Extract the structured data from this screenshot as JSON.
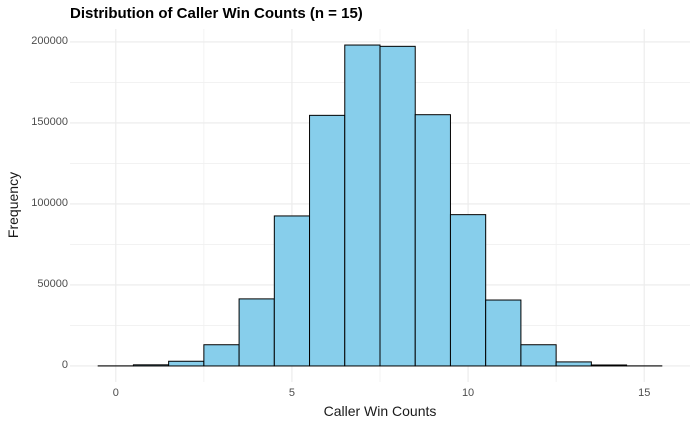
{
  "chart_data": {
    "type": "bar",
    "subtype": "histogram",
    "title": "Distribution of Caller Win Counts (n = 15)",
    "xlabel": "Caller Win Counts",
    "ylabel": "Frequency",
    "categories": [
      0,
      1,
      2,
      3,
      4,
      5,
      6,
      7,
      8,
      9,
      10,
      11,
      12,
      13,
      14,
      15
    ],
    "values": [
      60,
      700,
      2900,
      13100,
      41400,
      92600,
      154700,
      198100,
      197300,
      155100,
      93400,
      40700,
      13100,
      2500,
      600,
      40
    ],
    "bin_width": 1,
    "x_ticks": [
      0,
      5,
      10,
      15
    ],
    "x_minor_ticks": [
      2.5,
      7.5,
      12.5
    ],
    "y_ticks": [
      0,
      50000,
      100000,
      150000,
      200000
    ],
    "y_minor_ticks": [
      25000,
      75000,
      125000,
      175000
    ],
    "xlim": [
      -1.3,
      16.3
    ],
    "ylim": [
      -9900,
      208000
    ],
    "grid": true,
    "legend_position": "none",
    "colors": {
      "bar_fill": "#87CEEB",
      "bar_stroke": "#000000",
      "grid_major": "#EBEBEB",
      "grid_minor": "#F0F0F0",
      "axis_text": "#4D4D4D",
      "axis_title_text": "#1A1A1A",
      "title_text": "#000000",
      "background": "#FFFFFF"
    }
  }
}
